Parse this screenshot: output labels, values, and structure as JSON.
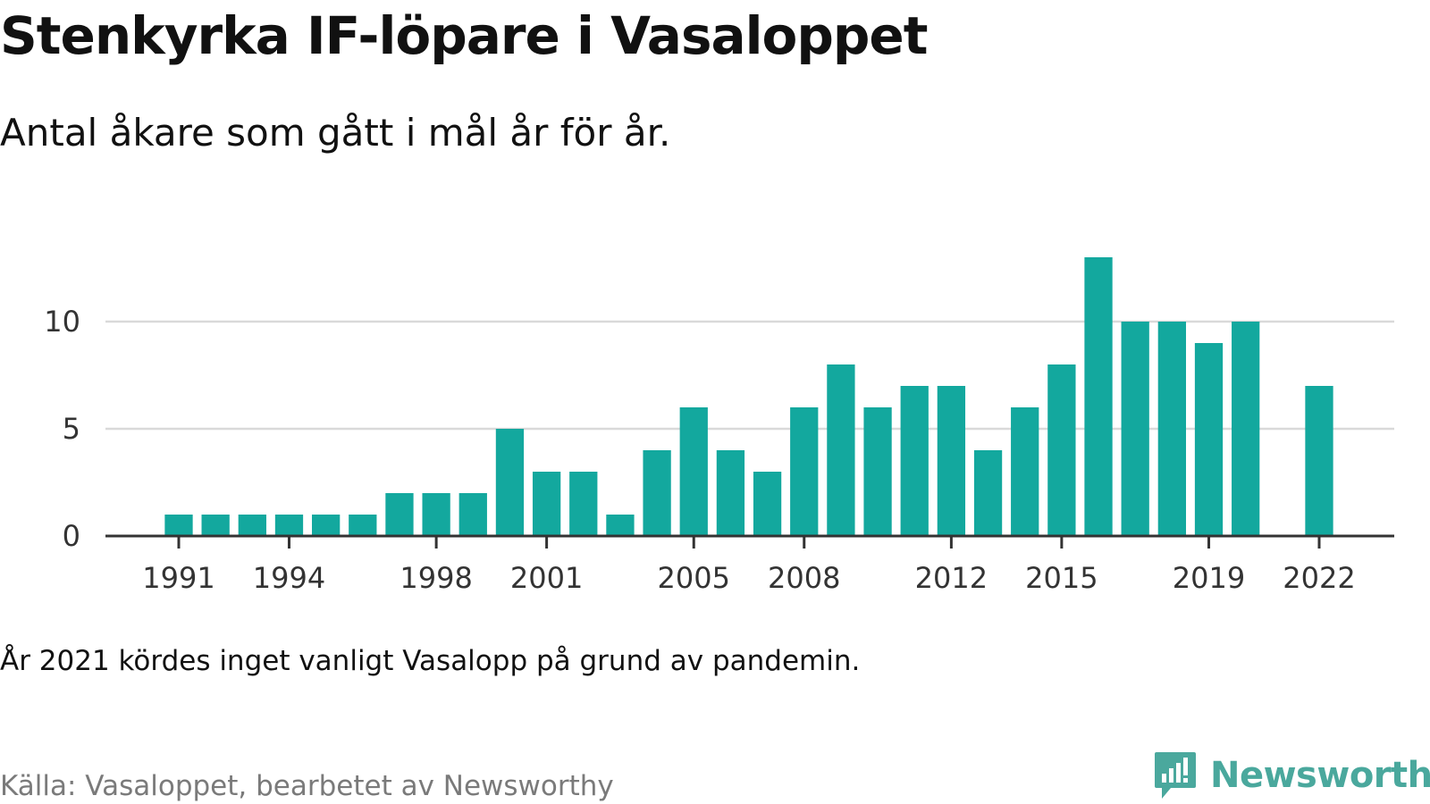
{
  "header": {
    "title": "Stenkyrka IF-löpare i Vasaloppet",
    "subtitle": "Antal åkare som gått i mål år för år."
  },
  "footer": {
    "note": "År 2021 kördes inget vanligt Vasalopp på grund av pandemin.",
    "source": "Källa: Vasaloppet, bearbetet av Newsworthy",
    "brand": "Newsworthy",
    "brand_icon": "newsworthy-logo-icon"
  },
  "colors": {
    "bar": "#13a89e",
    "grid": "#d9d9d9",
    "axis": "#333333",
    "brand": "#4aa89d"
  },
  "chart_data": {
    "type": "bar",
    "title": "Stenkyrka IF-löpare i Vasaloppet",
    "subtitle": "Antal åkare som gått i mål år för år.",
    "xlabel": "",
    "ylabel": "",
    "ylim": [
      0,
      13
    ],
    "yticks": [
      0,
      5,
      10
    ],
    "xticks": [
      1991,
      1994,
      1998,
      2001,
      2005,
      2008,
      2012,
      2015,
      2019,
      2022
    ],
    "grid": true,
    "legend": "none",
    "categories": [
      1991,
      1992,
      1993,
      1994,
      1995,
      1996,
      1997,
      1998,
      1999,
      2000,
      2001,
      2002,
      2003,
      2004,
      2005,
      2006,
      2007,
      2008,
      2009,
      2010,
      2011,
      2012,
      2013,
      2014,
      2015,
      2016,
      2017,
      2018,
      2019,
      2020,
      2021,
      2022
    ],
    "values": [
      1,
      1,
      1,
      1,
      1,
      1,
      2,
      2,
      2,
      5,
      3,
      3,
      1,
      4,
      6,
      4,
      3,
      6,
      8,
      6,
      7,
      7,
      4,
      6,
      8,
      13,
      10,
      10,
      9,
      10,
      null,
      7
    ]
  }
}
